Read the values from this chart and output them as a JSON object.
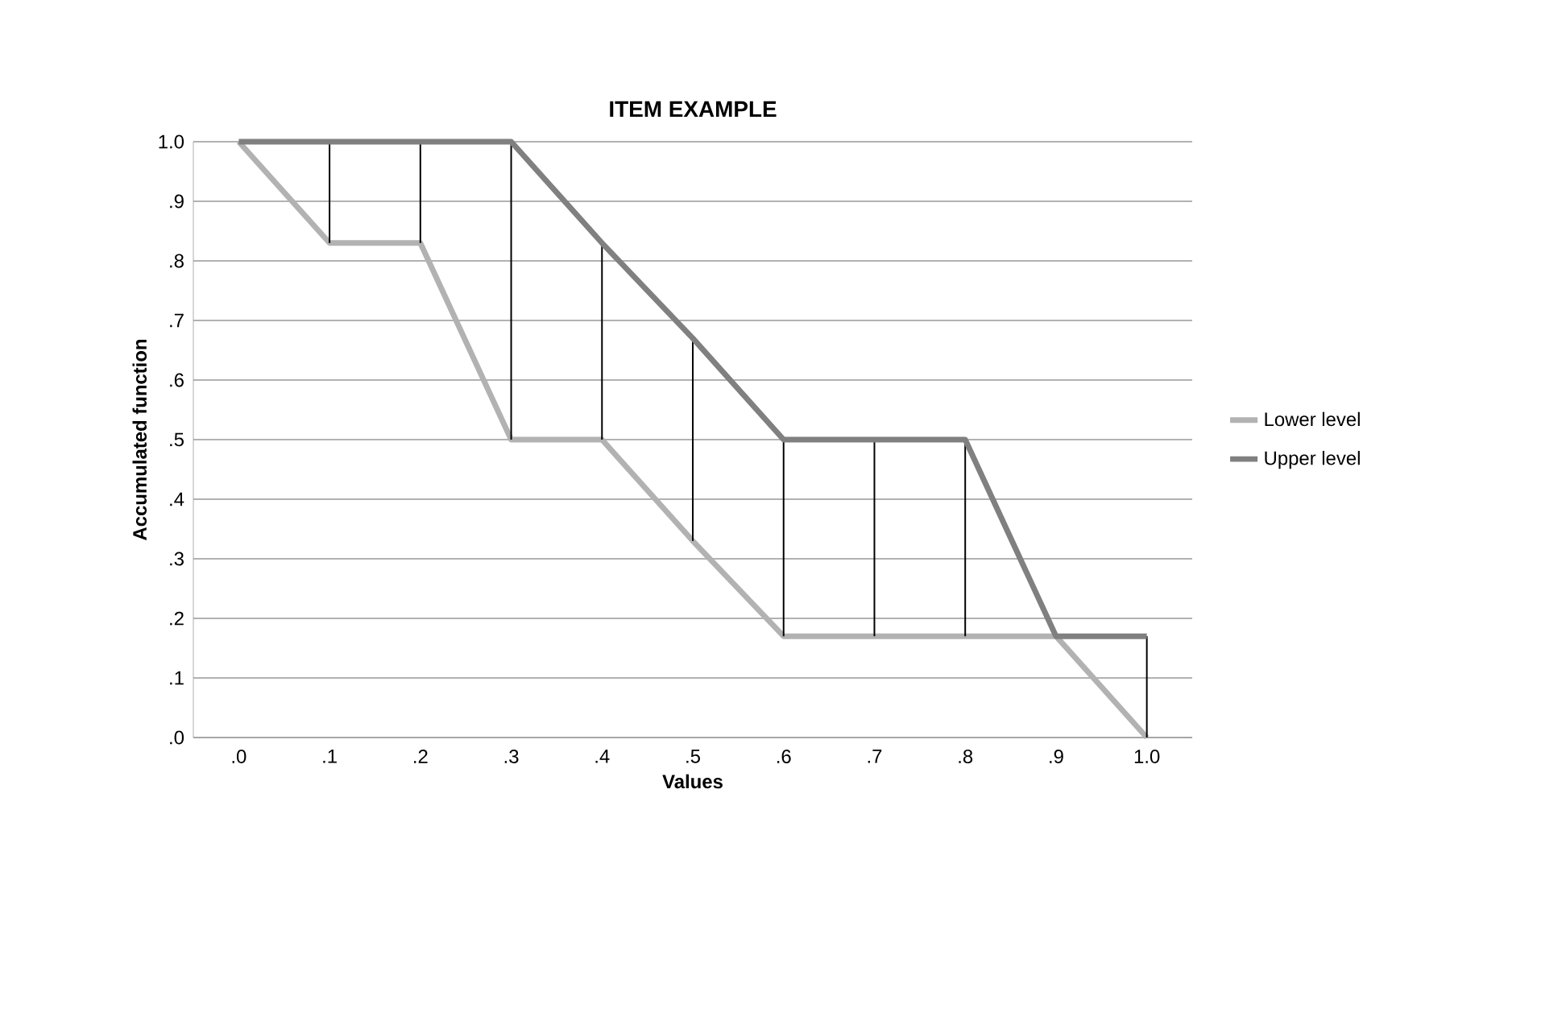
{
  "chart_data": {
    "type": "line",
    "title": "ITEM EXAMPLE",
    "xlabel": "Values",
    "ylabel": "Accumulated function",
    "categories": [
      ".0",
      ".1",
      ".2",
      ".3",
      ".4",
      ".5",
      ".6",
      ".7",
      ".8",
      ".9",
      "1.0"
    ],
    "series": [
      {
        "name": "Lower level",
        "color": "#b2b2b2",
        "values": [
          1.0,
          0.83,
          0.83,
          0.5,
          0.5,
          0.33,
          0.17,
          0.17,
          0.17,
          0.17,
          0.0
        ],
        "errors": [
          null,
          [
            0.83,
            1.0
          ],
          [
            0.83,
            1.0
          ],
          [
            0.5,
            1.0
          ],
          [
            0.5,
            0.83
          ],
          [
            0.33,
            0.67
          ],
          [
            0.17,
            0.5
          ],
          [
            0.17,
            0.5
          ],
          [
            0.17,
            0.5
          ],
          null,
          [
            0.0,
            0.17
          ]
        ]
      },
      {
        "name": "Upper level",
        "color": "#808080",
        "values": [
          1.0,
          1.0,
          1.0,
          1.0,
          0.83,
          0.67,
          0.5,
          0.5,
          0.5,
          0.17,
          0.17
        ]
      }
    ],
    "ylim": [
      0,
      1
    ],
    "yticks": [
      {
        "value": 0,
        "label": ".0"
      },
      {
        "value": 0.1,
        "label": ".1"
      },
      {
        "value": 0.2,
        "label": ".2"
      },
      {
        "value": 0.3,
        "label": ".3"
      },
      {
        "value": 0.4,
        "label": ".4"
      },
      {
        "value": 0.5,
        "label": ".5"
      },
      {
        "value": 0.6,
        "label": ".6"
      },
      {
        "value": 0.7,
        "label": ".7"
      },
      {
        "value": 0.8,
        "label": ".8"
      },
      {
        "value": 0.9,
        "label": ".9"
      },
      {
        "value": 1,
        "label": "1.0"
      }
    ],
    "grid": "y",
    "legend": "right",
    "marker": "none",
    "line_style": "solid"
  }
}
